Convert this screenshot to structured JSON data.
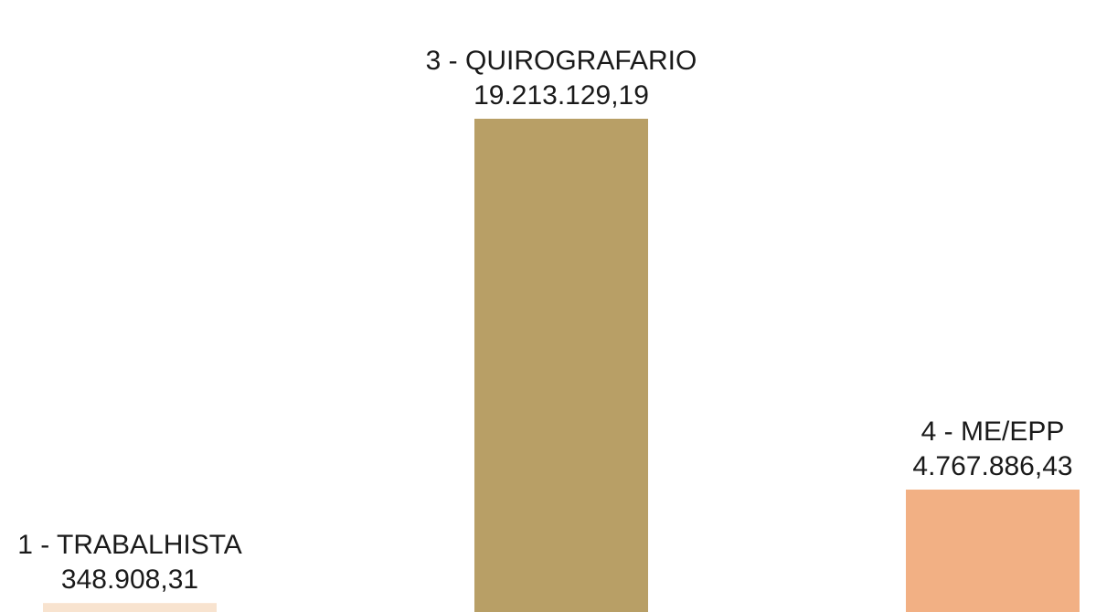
{
  "chart_data": {
    "type": "bar",
    "categories": [
      "1 - TRABALHISTA",
      "3 - QUIROGRAFARIO",
      "4 - ME/EPP"
    ],
    "values": [
      348908.31,
      19213129.19,
      4767886.43
    ],
    "value_labels": [
      "348.908,31",
      "19.213.129,19",
      "4.767.886,43"
    ],
    "colors": [
      "#f8e3cf",
      "#b89f66",
      "#f2b084"
    ],
    "title": "",
    "xlabel": "",
    "ylabel": "",
    "grid": false,
    "legend": "none"
  }
}
